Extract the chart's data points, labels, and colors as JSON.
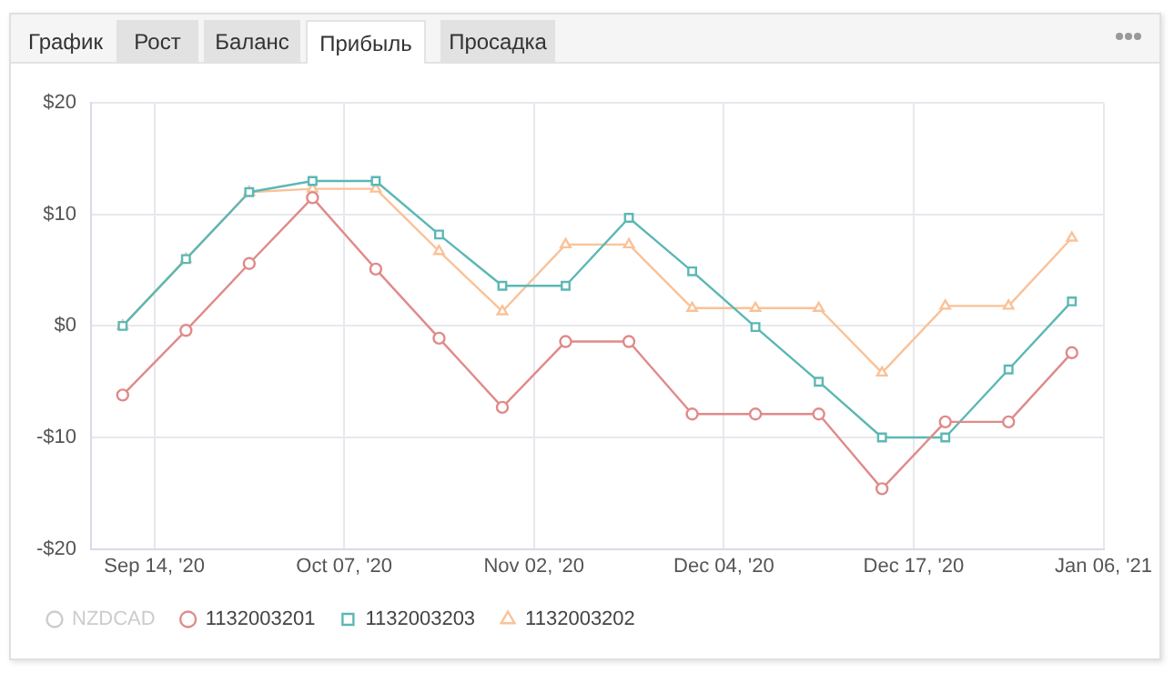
{
  "chart_data": {
    "type": "line",
    "annotations": [
      "График",
      "Рост",
      "Баланс",
      "Прибыль",
      "Просадка",
      "Sep 14, '20",
      "Oct 07, '20",
      "Nov 02, '20",
      "Dec 04, '20",
      "Dec 17, '20",
      "Jan 06, '21"
    ],
    "categories": [
      null,
      null,
      null,
      null,
      null,
      null,
      null,
      null,
      null,
      null,
      null,
      null,
      null,
      null,
      null,
      null
    ],
    "ylim": [
      -20,
      20
    ],
    "yticks": [
      {
        "value": -20,
        "label": "-$20"
      },
      {
        "value": -10,
        "label": "-$10"
      },
      {
        "value": 0,
        "label": "$0"
      },
      {
        "value": 10,
        "label": "$10"
      },
      {
        "value": 20,
        "label": "$20"
      }
    ],
    "grid": true,
    "legend": "bottom",
    "line_style": "solid",
    "series": [
      {
        "name": "NZDCAD",
        "color": "#cccccc",
        "marker": "circle",
        "values": [
          null,
          null,
          null,
          null,
          null,
          null,
          null,
          null,
          null,
          null,
          null,
          null,
          null,
          null,
          null,
          null
        ]
      },
      {
        "name": "1132003201",
        "color": "#e08a8a",
        "marker": "circle",
        "values": [
          -6.2,
          -0.4,
          5.6,
          11.5,
          5.1,
          -1.1,
          -7.3,
          -1.4,
          -1.4,
          -7.9,
          -7.9,
          -7.9,
          -14.6,
          -8.6,
          -8.6,
          -2.4
        ]
      },
      {
        "name": "1132003203",
        "color": "#5bb8b4",
        "marker": "square",
        "values": [
          0,
          6.0,
          12.0,
          13.0,
          13.0,
          8.2,
          3.6,
          3.6,
          9.7,
          4.9,
          -0.1,
          -5.0,
          -10,
          -10,
          -3.9,
          2.2
        ]
      },
      {
        "name": "1132003202",
        "color": "#f9c298",
        "marker": "triangle",
        "values": [
          0,
          6.0,
          12.0,
          12.3,
          12.3,
          6.7,
          1.3,
          7.3,
          7.3,
          1.6,
          1.6,
          1.6,
          -4.2,
          1.8,
          1.8,
          7.9
        ]
      }
    ]
  }
}
